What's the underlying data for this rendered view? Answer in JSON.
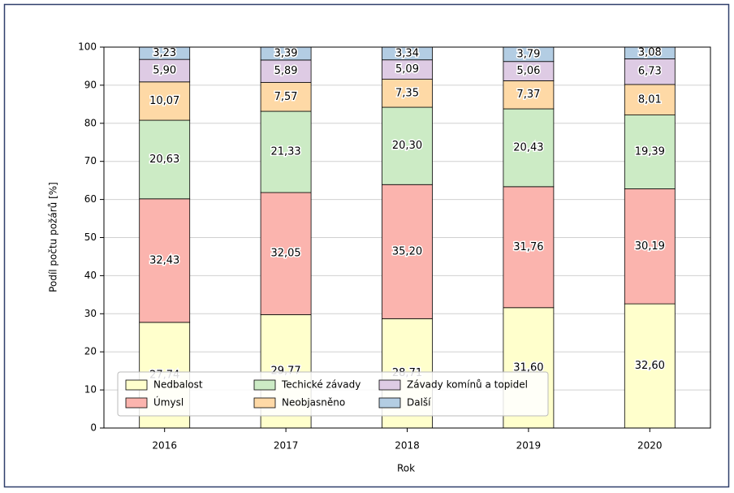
{
  "chart_data": {
    "type": "stacked_bar",
    "x_label": "Rok",
    "y_label": "Podíl počtu požárů [%]",
    "categories": [
      "2016",
      "2017",
      "2018",
      "2019",
      "2020"
    ],
    "ylim": [
      0,
      100
    ],
    "yticks": [
      0,
      10,
      20,
      30,
      40,
      50,
      60,
      70,
      80,
      90,
      100
    ],
    "grid": true,
    "legend": "lower left",
    "series": [
      {
        "name": "Nedbalost",
        "color": "#ffffcc",
        "values": [
          27.74,
          29.77,
          28.71,
          31.6,
          32.6
        ],
        "value_labels": [
          "27,74",
          "29,77",
          "28,71",
          "31,60",
          "32,60"
        ]
      },
      {
        "name": "Úmysl",
        "color": "#fbb4ae",
        "values": [
          32.43,
          32.05,
          35.2,
          31.76,
          30.19
        ],
        "value_labels": [
          "32,43",
          "32,05",
          "35,20",
          "31,76",
          "30,19"
        ]
      },
      {
        "name": "Techické závady",
        "color": "#ccebc5",
        "values": [
          20.63,
          21.33,
          20.3,
          20.43,
          19.39
        ],
        "value_labels": [
          "20,63",
          "21,33",
          "20,30",
          "20,43",
          "19,39"
        ]
      },
      {
        "name": "Neobjasněno",
        "color": "#fed9a6",
        "values": [
          10.07,
          7.57,
          7.35,
          7.37,
          8.01
        ],
        "value_labels": [
          "10,07",
          "7,57",
          "7,35",
          "7,37",
          "8,01"
        ]
      },
      {
        "name": "Závady komínů a topidel",
        "color": "#decbe4",
        "values": [
          5.9,
          5.89,
          5.09,
          5.06,
          6.73
        ],
        "value_labels": [
          "5,90",
          "5,89",
          "5,09",
          "5,06",
          "6,73"
        ]
      },
      {
        "name": "Další",
        "color": "#b3cde3",
        "values": [
          3.23,
          3.39,
          3.34,
          3.79,
          3.08
        ],
        "value_labels": [
          "3,23",
          "3,39",
          "3,34",
          "3,79",
          "3,08"
        ]
      }
    ]
  }
}
